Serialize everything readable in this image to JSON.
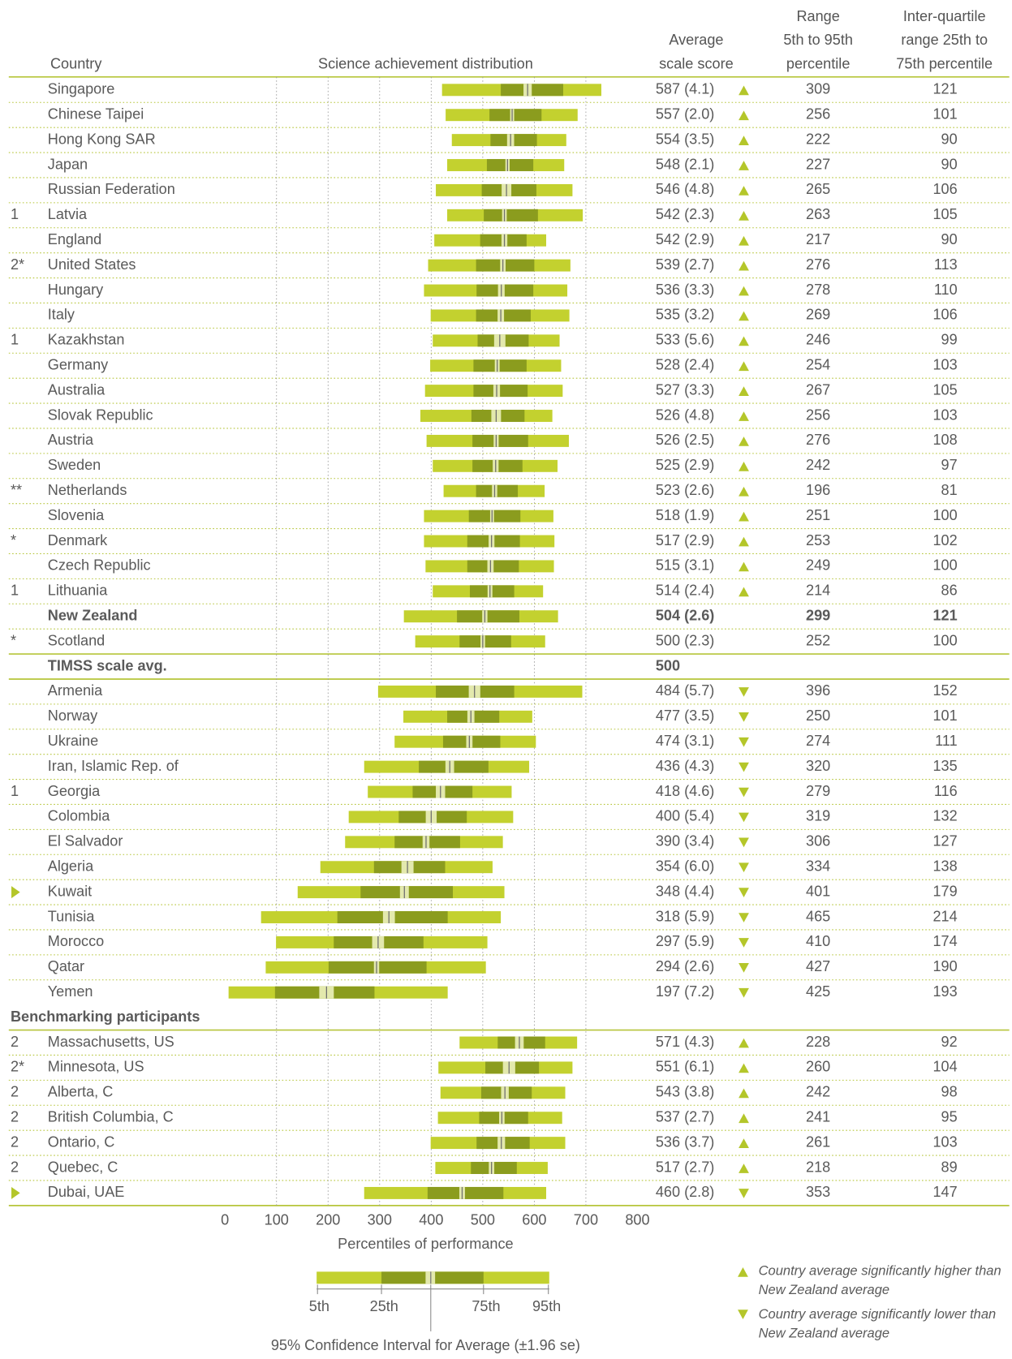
{
  "chart_data": {
    "type": "distribution",
    "headers": {
      "country": "Country",
      "distribution": "Science achievement distribution",
      "average": [
        "Average",
        "scale score"
      ],
      "range": [
        "Range",
        "5th to 95th",
        "percentile"
      ],
      "iqr": [
        "Inter-quartile",
        "range 25th to",
        "75th percentile"
      ]
    },
    "xlim": [
      0,
      800
    ],
    "xticks": [
      0,
      100,
      200,
      300,
      400,
      500,
      600,
      700,
      800
    ],
    "xlabel": "Percentiles of performance",
    "ci_factor": 1.96,
    "colors": {
      "outer": "#c3d12f",
      "inner": "#8b9c1e",
      "ci": "#e3e9ad",
      "marker": "#b4c62a"
    },
    "groups": [
      {
        "rows": [
          {
            "country": "Singapore",
            "average": 587,
            "se": 4.1,
            "average_label": "587 (4.1)",
            "comparison": "up",
            "range": 309,
            "iqr": 121,
            "p5": 421,
            "p25": 535
          },
          {
            "country": "Chinese Taipei",
            "average": 557,
            "se": 2.0,
            "average_label": "557 (2.0)",
            "comparison": "up",
            "range": 256,
            "iqr": 101,
            "p5": 428,
            "p25": 513
          },
          {
            "country": "Hong Kong SAR",
            "average": 554,
            "se": 3.5,
            "average_label": "554 (3.5)",
            "comparison": "up",
            "range": 222,
            "iqr": 90,
            "p5": 440,
            "p25": 515
          },
          {
            "country": "Japan",
            "average": 548,
            "se": 2.1,
            "average_label": "548 (2.1)",
            "comparison": "up",
            "range": 227,
            "iqr": 90,
            "p5": 431,
            "p25": 508
          },
          {
            "country": "Russian Federation",
            "average": 546,
            "se": 4.8,
            "average_label": "546 (4.8)",
            "comparison": "up",
            "range": 265,
            "iqr": 106,
            "p5": 409,
            "p25": 498
          },
          {
            "note": "1",
            "country": "Latvia",
            "average": 542,
            "se": 2.3,
            "average_label": "542 (2.3)",
            "comparison": "up",
            "range": 263,
            "iqr": 105,
            "p5": 431,
            "p25": 502
          },
          {
            "country": "England",
            "average": 542,
            "se": 2.9,
            "average_label": "542 (2.9)",
            "comparison": "up",
            "range": 217,
            "iqr": 90,
            "p5": 406,
            "p25": 495
          },
          {
            "note": "2*",
            "country": "United States",
            "average": 539,
            "se": 2.7,
            "average_label": "539 (2.7)",
            "comparison": "up",
            "range": 276,
            "iqr": 113,
            "p5": 394,
            "p25": 487
          },
          {
            "country": "Hungary",
            "average": 536,
            "se": 3.3,
            "average_label": "536 (3.3)",
            "comparison": "up",
            "range": 278,
            "iqr": 110,
            "p5": 386,
            "p25": 488
          },
          {
            "country": "Italy",
            "average": 535,
            "se": 3.2,
            "average_label": "535 (3.2)",
            "comparison": "up",
            "range": 269,
            "iqr": 106,
            "p5": 399,
            "p25": 487
          },
          {
            "note": "1",
            "country": "Kazakhstan",
            "average": 533,
            "se": 5.6,
            "average_label": "533 (5.6)",
            "comparison": "up",
            "range": 246,
            "iqr": 99,
            "p5": 403,
            "p25": 490
          },
          {
            "country": "Germany",
            "average": 528,
            "se": 2.4,
            "average_label": "528 (2.4)",
            "comparison": "up",
            "range": 254,
            "iqr": 103,
            "p5": 398,
            "p25": 482
          },
          {
            "country": "Australia",
            "average": 527,
            "se": 3.3,
            "average_label": "527 (3.3)",
            "comparison": "up",
            "range": 267,
            "iqr": 105,
            "p5": 388,
            "p25": 482
          },
          {
            "country": "Slovak Republic",
            "average": 526,
            "se": 4.8,
            "average_label": "526 (4.8)",
            "comparison": "up",
            "range": 256,
            "iqr": 103,
            "p5": 379,
            "p25": 478
          },
          {
            "country": "Austria",
            "average": 526,
            "se": 2.5,
            "average_label": "526 (2.5)",
            "comparison": "up",
            "range": 276,
            "iqr": 108,
            "p5": 391,
            "p25": 480
          },
          {
            "country": "Sweden",
            "average": 525,
            "se": 2.9,
            "average_label": "525 (2.9)",
            "comparison": "up",
            "range": 242,
            "iqr": 97,
            "p5": 403,
            "p25": 480
          },
          {
            "note": "**",
            "country": "Netherlands",
            "average": 523,
            "se": 2.6,
            "average_label": "523 (2.6)",
            "comparison": "up",
            "range": 196,
            "iqr": 81,
            "p5": 424,
            "p25": 487
          },
          {
            "country": "Slovenia",
            "average": 518,
            "se": 1.9,
            "average_label": "518 (1.9)",
            "comparison": "up",
            "range": 251,
            "iqr": 100,
            "p5": 386,
            "p25": 473
          },
          {
            "note": "*",
            "country": "Denmark",
            "average": 517,
            "se": 2.9,
            "average_label": "517 (2.9)",
            "comparison": "up",
            "range": 253,
            "iqr": 102,
            "p5": 386,
            "p25": 470
          },
          {
            "country": "Czech Republic",
            "average": 515,
            "se": 3.1,
            "average_label": "515 (3.1)",
            "comparison": "up",
            "range": 249,
            "iqr": 100,
            "p5": 389,
            "p25": 470
          },
          {
            "note": "1",
            "country": "Lithuania",
            "average": 514,
            "se": 2.4,
            "average_label": "514 (2.4)",
            "comparison": "up",
            "range": 214,
            "iqr": 86,
            "p5": 403,
            "p25": 475
          },
          {
            "country": "New Zealand",
            "highlight": true,
            "average": 504,
            "se": 2.6,
            "average_label": "504 (2.6)",
            "range": 299,
            "iqr": 121,
            "p5": 347,
            "p25": 450
          },
          {
            "note": "*",
            "country": "Scotland",
            "average": 500,
            "se": 2.3,
            "average_label": "500 (2.3)",
            "range": 252,
            "iqr": 100,
            "p5": 369,
            "p25": 455
          }
        ]
      },
      {
        "reference": {
          "label": "TIMSS scale avg.",
          "value": 500
        }
      },
      {
        "rows": [
          {
            "country": "Armenia",
            "average": 484,
            "se": 5.7,
            "average_label": "484 (5.7)",
            "comparison": "down",
            "range": 396,
            "iqr": 152,
            "p5": 297,
            "p25": 409
          },
          {
            "country": "Norway",
            "average": 477,
            "se": 3.5,
            "average_label": "477 (3.5)",
            "comparison": "down",
            "range": 250,
            "iqr": 101,
            "p5": 346,
            "p25": 431
          },
          {
            "country": "Ukraine",
            "average": 474,
            "se": 3.1,
            "average_label": "474 (3.1)",
            "comparison": "down",
            "range": 274,
            "iqr": 111,
            "p5": 329,
            "p25": 423
          },
          {
            "country": "Iran, Islamic Rep. of",
            "average": 436,
            "se": 4.3,
            "average_label": "436 (4.3)",
            "comparison": "down",
            "range": 320,
            "iqr": 135,
            "p5": 270,
            "p25": 376
          },
          {
            "note": "1",
            "country": "Georgia",
            "average": 418,
            "se": 4.6,
            "average_label": "418 (4.6)",
            "comparison": "down",
            "range": 279,
            "iqr": 116,
            "p5": 277,
            "p25": 364
          },
          {
            "country": "Colombia",
            "average": 400,
            "se": 5.4,
            "average_label": "400 (5.4)",
            "comparison": "down",
            "range": 319,
            "iqr": 132,
            "p5": 240,
            "p25": 337
          },
          {
            "country": "El Salvador",
            "average": 390,
            "se": 3.4,
            "average_label": "390 (3.4)",
            "comparison": "down",
            "range": 306,
            "iqr": 127,
            "p5": 233,
            "p25": 329
          },
          {
            "country": "Algeria",
            "average": 354,
            "se": 6.0,
            "average_label": "354 (6.0)",
            "comparison": "down",
            "range": 334,
            "iqr": 138,
            "p5": 185,
            "p25": 289
          },
          {
            "note_marker": "triangle",
            "country": "Kuwait",
            "average": 348,
            "se": 4.4,
            "average_label": "348 (4.4)",
            "comparison": "down",
            "range": 401,
            "iqr": 179,
            "p5": 141,
            "p25": 263
          },
          {
            "country": "Tunisia",
            "average": 318,
            "se": 5.9,
            "average_label": "318 (5.9)",
            "comparison": "down",
            "range": 465,
            "iqr": 214,
            "p5": 70,
            "p25": 218
          },
          {
            "country": "Morocco",
            "average": 297,
            "se": 5.9,
            "average_label": "297 (5.9)",
            "comparison": "down",
            "range": 410,
            "iqr": 174,
            "p5": 99,
            "p25": 211
          },
          {
            "country": "Qatar",
            "average": 294,
            "se": 2.6,
            "average_label": "294 (2.6)",
            "comparison": "down",
            "range": 427,
            "iqr": 190,
            "p5": 79,
            "p25": 201
          },
          {
            "country": "Yemen",
            "average": 197,
            "se": 7.2,
            "average_label": "197 (7.2)",
            "comparison": "down",
            "range": 425,
            "iqr": 193,
            "p5": 7,
            "p25": 97
          }
        ]
      },
      {
        "title": "Benchmarking participants",
        "rows": [
          {
            "note": "2",
            "country": "Massachusetts, US",
            "average": 571,
            "se": 4.3,
            "average_label": "571 (4.3)",
            "comparison": "up",
            "range": 228,
            "iqr": 92,
            "p5": 455,
            "p25": 529
          },
          {
            "note": "2*",
            "country": "Minnesota, US",
            "average": 551,
            "se": 6.1,
            "average_label": "551 (6.1)",
            "comparison": "up",
            "range": 260,
            "iqr": 104,
            "p5": 414,
            "p25": 505
          },
          {
            "note": "2",
            "country": "Alberta, C",
            "average": 543,
            "se": 3.8,
            "average_label": "543 (3.8)",
            "comparison": "up",
            "range": 242,
            "iqr": 98,
            "p5": 418,
            "p25": 497
          },
          {
            "note": "2",
            "country": "British Columbia, C",
            "average": 537,
            "se": 2.7,
            "average_label": "537 (2.7)",
            "comparison": "up",
            "range": 241,
            "iqr": 95,
            "p5": 413,
            "p25": 493
          },
          {
            "note": "2",
            "country": "Ontario, C",
            "average": 536,
            "se": 3.7,
            "average_label": "536 (3.7)",
            "comparison": "up",
            "range": 261,
            "iqr": 103,
            "p5": 399,
            "p25": 488
          },
          {
            "note": "2",
            "country": "Quebec, C",
            "average": 517,
            "se": 2.7,
            "average_label": "517 (2.7)",
            "comparison": "up",
            "range": 218,
            "iqr": 89,
            "p5": 408,
            "p25": 477
          },
          {
            "note_marker": "triangle",
            "country": "Dubai, UAE",
            "average": 460,
            "se": 2.8,
            "average_label": "460 (2.8)",
            "comparison": "down",
            "range": 353,
            "iqr": 147,
            "p5": 270,
            "p25": 393
          }
        ]
      }
    ],
    "legend": {
      "bar_labels": [
        "5th",
        "25th",
        "75th",
        "95th"
      ],
      "ci_label": "95% Confidence Interval for Average (±1.96 se)",
      "up": [
        "Country average significantly higher than",
        "New Zealand average"
      ],
      "down": [
        "Country average significantly lower than",
        "New Zealand average"
      ]
    }
  }
}
